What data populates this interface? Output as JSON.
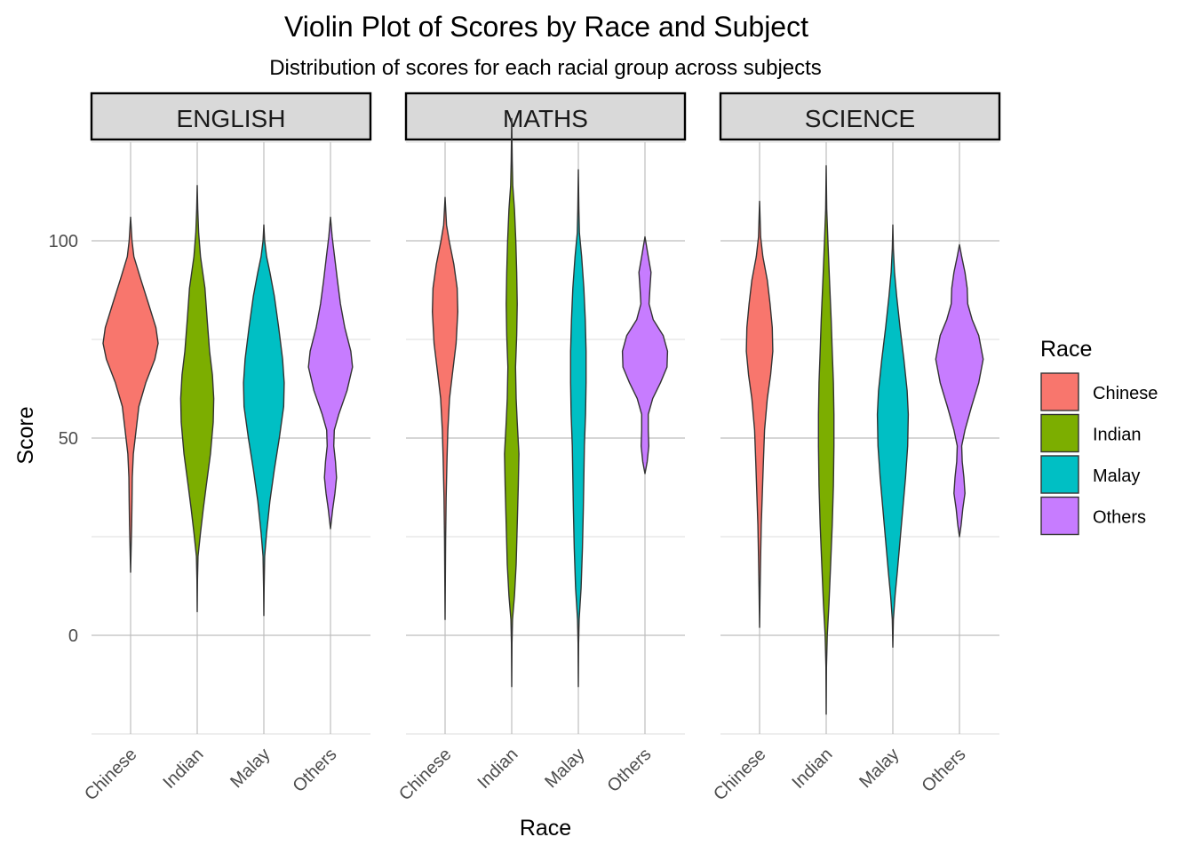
{
  "chart_data": {
    "type": "violin",
    "title": "Violin Plot of Scores by Race and Subject",
    "subtitle": "Distribution of scores for each racial group across subjects",
    "xlabel": "Race",
    "ylabel": "Score",
    "ylim": [
      -25,
      125
    ],
    "yticks": [
      0,
      50,
      100
    ],
    "grid": true,
    "categories": [
      "Chinese",
      "Indian",
      "Malay",
      "Others"
    ],
    "legend": {
      "title": "Race",
      "placement": "right",
      "entries": [
        {
          "label": "Chinese",
          "color": "#F8766D"
        },
        {
          "label": "Indian",
          "color": "#7CAE00"
        },
        {
          "label": "Malay",
          "color": "#00BFC4"
        },
        {
          "label": "Others",
          "color": "#C77CFF"
        }
      ]
    },
    "panels": [
      {
        "subject": "ENGLISH",
        "violins": [
          {
            "race": "Chinese",
            "min": 16,
            "max": 106,
            "profile": [
              [
                16,
                0
              ],
              [
                22,
                0.02
              ],
              [
                28,
                0.04
              ],
              [
                34,
                0.05
              ],
              [
                40,
                0.06
              ],
              [
                46,
                0.1
              ],
              [
                52,
                0.2
              ],
              [
                58,
                0.3
              ],
              [
                64,
                0.55
              ],
              [
                70,
                0.88
              ],
              [
                74,
                1.0
              ],
              [
                78,
                0.92
              ],
              [
                84,
                0.65
              ],
              [
                90,
                0.38
              ],
              [
                96,
                0.12
              ],
              [
                100,
                0.05
              ],
              [
                106,
                0
              ]
            ]
          },
          {
            "race": "Indian",
            "min": 6,
            "max": 114,
            "profile": [
              [
                6,
                0
              ],
              [
                14,
                0.01
              ],
              [
                20,
                0.03
              ],
              [
                26,
                0.12
              ],
              [
                32,
                0.22
              ],
              [
                38,
                0.33
              ],
              [
                46,
                0.48
              ],
              [
                54,
                0.58
              ],
              [
                60,
                0.6
              ],
              [
                66,
                0.55
              ],
              [
                72,
                0.45
              ],
              [
                80,
                0.36
              ],
              [
                88,
                0.28
              ],
              [
                96,
                0.12
              ],
              [
                102,
                0.05
              ],
              [
                108,
                0.02
              ],
              [
                114,
                0
              ]
            ]
          },
          {
            "race": "Malay",
            "min": 5,
            "max": 104,
            "profile": [
              [
                5,
                0
              ],
              [
                12,
                0.01
              ],
              [
                20,
                0.03
              ],
              [
                26,
                0.1
              ],
              [
                34,
                0.22
              ],
              [
                42,
                0.38
              ],
              [
                50,
                0.56
              ],
              [
                58,
                0.72
              ],
              [
                64,
                0.74
              ],
              [
                70,
                0.68
              ],
              [
                78,
                0.54
              ],
              [
                86,
                0.38
              ],
              [
                92,
                0.22
              ],
              [
                96,
                0.1
              ],
              [
                100,
                0.03
              ],
              [
                104,
                0
              ]
            ]
          },
          {
            "race": "Others",
            "min": 27,
            "max": 106,
            "profile": [
              [
                27,
                0
              ],
              [
                32,
                0.08
              ],
              [
                36,
                0.16
              ],
              [
                40,
                0.22
              ],
              [
                44,
                0.18
              ],
              [
                48,
                0.12
              ],
              [
                52,
                0.14
              ],
              [
                56,
                0.3
              ],
              [
                62,
                0.6
              ],
              [
                68,
                0.8
              ],
              [
                72,
                0.74
              ],
              [
                78,
                0.52
              ],
              [
                84,
                0.36
              ],
              [
                90,
                0.25
              ],
              [
                96,
                0.15
              ],
              [
                101,
                0.06
              ],
              [
                106,
                0
              ]
            ]
          }
        ]
      },
      {
        "subject": "MATHS",
        "violins": [
          {
            "race": "Chinese",
            "min": 4,
            "max": 111,
            "profile": [
              [
                4,
                0
              ],
              [
                14,
                0.01
              ],
              [
                24,
                0.02
              ],
              [
                35,
                0.04
              ],
              [
                45,
                0.07
              ],
              [
                52,
                0.1
              ],
              [
                60,
                0.16
              ],
              [
                66,
                0.26
              ],
              [
                74,
                0.4
              ],
              [
                82,
                0.46
              ],
              [
                88,
                0.44
              ],
              [
                94,
                0.32
              ],
              [
                100,
                0.15
              ],
              [
                104,
                0.05
              ],
              [
                111,
                0
              ]
            ]
          },
          {
            "race": "Indian",
            "min": -13,
            "max": 131,
            "profile": [
              [
                -13,
                0
              ],
              [
                -2,
                0.01
              ],
              [
                4,
                0.03
              ],
              [
                10,
                0.1
              ],
              [
                18,
                0.16
              ],
              [
                28,
                0.2
              ],
              [
                38,
                0.24
              ],
              [
                46,
                0.26
              ],
              [
                54,
                0.2
              ],
              [
                60,
                0.16
              ],
              [
                68,
                0.14
              ],
              [
                76,
                0.18
              ],
              [
                84,
                0.2
              ],
              [
                92,
                0.18
              ],
              [
                100,
                0.15
              ],
              [
                108,
                0.1
              ],
              [
                114,
                0.04
              ],
              [
                120,
                0.02
              ],
              [
                131,
                0
              ]
            ]
          },
          {
            "race": "Malay",
            "min": -13,
            "max": 118,
            "profile": [
              [
                -13,
                0
              ],
              [
                -2,
                0.01
              ],
              [
                4,
                0.03
              ],
              [
                12,
                0.1
              ],
              [
                22,
                0.15
              ],
              [
                32,
                0.18
              ],
              [
                40,
                0.2
              ],
              [
                48,
                0.22
              ],
              [
                56,
                0.26
              ],
              [
                64,
                0.28
              ],
              [
                72,
                0.28
              ],
              [
                80,
                0.25
              ],
              [
                88,
                0.2
              ],
              [
                96,
                0.12
              ],
              [
                102,
                0.04
              ],
              [
                108,
                0.02
              ],
              [
                118,
                0
              ]
            ]
          },
          {
            "race": "Others",
            "min": 41,
            "max": 101,
            "profile": [
              [
                41,
                0
              ],
              [
                44,
                0.08
              ],
              [
                48,
                0.14
              ],
              [
                52,
                0.12
              ],
              [
                56,
                0.12
              ],
              [
                60,
                0.28
              ],
              [
                64,
                0.56
              ],
              [
                68,
                0.8
              ],
              [
                72,
                0.82
              ],
              [
                76,
                0.66
              ],
              [
                80,
                0.3
              ],
              [
                84,
                0.15
              ],
              [
                88,
                0.18
              ],
              [
                92,
                0.22
              ],
              [
                96,
                0.12
              ],
              [
                101,
                0
              ]
            ]
          }
        ]
      },
      {
        "subject": "SCIENCE",
        "violins": [
          {
            "race": "Chinese",
            "min": 2,
            "max": 110,
            "profile": [
              [
                2,
                0
              ],
              [
                12,
                0.02
              ],
              [
                20,
                0.04
              ],
              [
                28,
                0.06
              ],
              [
                36,
                0.1
              ],
              [
                44,
                0.14
              ],
              [
                52,
                0.18
              ],
              [
                60,
                0.28
              ],
              [
                66,
                0.4
              ],
              [
                72,
                0.48
              ],
              [
                78,
                0.46
              ],
              [
                84,
                0.38
              ],
              [
                90,
                0.28
              ],
              [
                96,
                0.12
              ],
              [
                101,
                0.04
              ],
              [
                110,
                0
              ]
            ]
          },
          {
            "race": "Indian",
            "min": -20,
            "max": 119,
            "profile": [
              [
                -20,
                0
              ],
              [
                -8,
                0.01
              ],
              [
                0,
                0.04
              ],
              [
                8,
                0.1
              ],
              [
                18,
                0.16
              ],
              [
                28,
                0.22
              ],
              [
                38,
                0.26
              ],
              [
                48,
                0.28
              ],
              [
                56,
                0.28
              ],
              [
                64,
                0.26
              ],
              [
                72,
                0.22
              ],
              [
                80,
                0.18
              ],
              [
                90,
                0.12
              ],
              [
                100,
                0.06
              ],
              [
                108,
                0.02
              ],
              [
                119,
                0
              ]
            ]
          },
          {
            "race": "Malay",
            "min": -3,
            "max": 104,
            "profile": [
              [
                -3,
                0
              ],
              [
                4,
                0.02
              ],
              [
                10,
                0.08
              ],
              [
                16,
                0.16
              ],
              [
                24,
                0.26
              ],
              [
                32,
                0.36
              ],
              [
                40,
                0.46
              ],
              [
                48,
                0.54
              ],
              [
                56,
                0.56
              ],
              [
                62,
                0.52
              ],
              [
                70,
                0.4
              ],
              [
                78,
                0.26
              ],
              [
                86,
                0.14
              ],
              [
                92,
                0.06
              ],
              [
                98,
                0.02
              ],
              [
                104,
                0
              ]
            ]
          },
          {
            "race": "Others",
            "min": 25,
            "max": 99,
            "profile": [
              [
                25,
                0
              ],
              [
                28,
                0.06
              ],
              [
                32,
                0.12
              ],
              [
                36,
                0.2
              ],
              [
                40,
                0.16
              ],
              [
                44,
                0.1
              ],
              [
                48,
                0.08
              ],
              [
                52,
                0.2
              ],
              [
                58,
                0.44
              ],
              [
                64,
                0.7
              ],
              [
                70,
                0.86
              ],
              [
                76,
                0.7
              ],
              [
                80,
                0.46
              ],
              [
                84,
                0.3
              ],
              [
                88,
                0.28
              ],
              [
                92,
                0.2
              ],
              [
                96,
                0.08
              ],
              [
                99,
                0
              ]
            ]
          }
        ]
      }
    ]
  }
}
